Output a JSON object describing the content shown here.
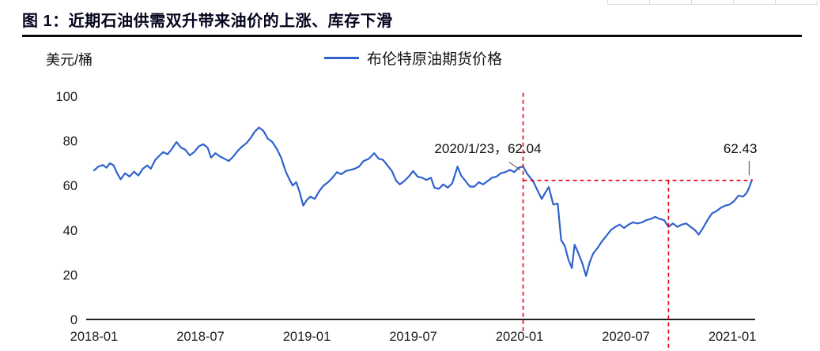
{
  "chart": {
    "colors": {
      "line": "#2f62cc",
      "dashed": "#e60012",
      "axis_text": "#1c1c1c",
      "title": "#04041e"
    }
  },
  "chart_data": {
    "type": "line",
    "title": "图 1：近期石油供需双升带来油价的上涨、库存下滑",
    "ylabel": "美元/桶",
    "xlabel": "",
    "ylim": [
      0,
      100
    ],
    "y_ticks": [
      0,
      20,
      40,
      60,
      80,
      100
    ],
    "x_ticks": [
      "2018-01",
      "2018-07",
      "2019-01",
      "2019-07",
      "2020-01",
      "2020-07",
      "2021-01"
    ],
    "x_tick_months": [
      0,
      6,
      12,
      18,
      24,
      30,
      36
    ],
    "x_unit": "months_since_2018_01",
    "grid": false,
    "legend_position": "top-center",
    "series": [
      {
        "name": "布伦特原油期货价格",
        "x": [
          0,
          0.25,
          0.5,
          0.7,
          0.9,
          1.1,
          1.3,
          1.5,
          1.75,
          2,
          2.25,
          2.5,
          2.75,
          3,
          3.2,
          3.45,
          3.7,
          3.9,
          4.15,
          4.4,
          4.65,
          4.9,
          5.15,
          5.4,
          5.65,
          5.9,
          6.15,
          6.4,
          6.6,
          6.85,
          7.1,
          7.35,
          7.6,
          7.85,
          8.1,
          8.35,
          8.6,
          8.85,
          9.05,
          9.3,
          9.55,
          9.8,
          10.05,
          10.3,
          10.55,
          10.8,
          11,
          11.2,
          11.4,
          11.6,
          11.8,
          12,
          12.2,
          12.45,
          12.7,
          12.95,
          13.2,
          13.45,
          13.7,
          13.95,
          14.2,
          14.45,
          14.7,
          14.95,
          15.2,
          15.5,
          15.8,
          16.05,
          16.3,
          16.55,
          16.8,
          17.05,
          17.25,
          17.5,
          17.75,
          18,
          18.25,
          18.5,
          18.75,
          19,
          19.2,
          19.45,
          19.7,
          19.95,
          20.2,
          20.5,
          20.7,
          20.95,
          21.2,
          21.45,
          21.7,
          21.95,
          22.2,
          22.45,
          22.7,
          22.95,
          23.2,
          23.45,
          23.7,
          23.95,
          24.2,
          24.45,
          24.75,
          25,
          25.25,
          25.5,
          25.65,
          25.9,
          26.15,
          26.35,
          26.55,
          26.75,
          26.95,
          27.1,
          27.3,
          27.55,
          27.75,
          27.95,
          28.15,
          28.4,
          28.65,
          28.9,
          29.15,
          29.4,
          29.65,
          29.9,
          30.15,
          30.4,
          30.65,
          30.9,
          31.15,
          31.4,
          31.65,
          31.9,
          32.15,
          32.4,
          32.65,
          32.9,
          33.15,
          33.4,
          33.65,
          33.9,
          34.1,
          34.35,
          34.6,
          34.85,
          35.1,
          35.35,
          35.6,
          35.85,
          36.1,
          36.35,
          36.6,
          36.8,
          36.95,
          37.1
        ],
        "y": [
          66.8,
          68.5,
          69.2,
          68,
          70,
          69,
          65.5,
          62.8,
          65.5,
          64,
          66.2,
          64.5,
          67.5,
          69,
          67.5,
          71.5,
          73.5,
          75,
          74,
          76.5,
          79.5,
          77,
          76,
          73.5,
          75,
          77.5,
          78.5,
          77,
          72.5,
          74.5,
          73,
          72,
          71,
          73,
          75.5,
          77.5,
          79,
          81.5,
          84,
          86,
          84.5,
          81,
          79.5,
          76.5,
          72.5,
          66.5,
          63,
          60,
          61.5,
          57,
          51,
          53.5,
          55,
          54,
          57.5,
          60,
          61.5,
          63.5,
          66,
          65,
          66.5,
          67,
          67.5,
          68.5,
          71,
          72,
          74.5,
          72,
          71.5,
          69,
          66.5,
          62,
          60.5,
          62,
          64,
          66.5,
          64,
          63.5,
          62.5,
          63.5,
          59,
          58.5,
          60.5,
          59,
          61,
          68.5,
          64.5,
          62,
          59.5,
          59.5,
          61.5,
          60.5,
          62,
          63.5,
          64,
          65.5,
          66,
          67,
          66,
          68,
          68.5,
          65,
          62.04,
          58,
          54,
          57.5,
          59.3,
          51.5,
          51.9,
          35.5,
          33,
          27,
          23,
          33.5,
          30,
          25,
          19.5,
          25.5,
          29.5,
          32,
          35,
          37.5,
          40,
          41.5,
          42.5,
          41,
          42.5,
          43.5,
          43,
          43.5,
          44.5,
          45,
          46,
          45,
          44.5,
          41.5,
          43,
          41.5,
          42.5,
          43,
          41.5,
          40,
          38,
          41,
          44.5,
          47.5,
          48.5,
          50,
          51,
          51.5,
          53,
          55.5,
          55,
          56.5,
          59,
          62.43
        ]
      }
    ],
    "annotations": [
      {
        "text": "2020/1/23，62.04",
        "x_month": 19.2,
        "y_value": 74.5,
        "anchor": "start",
        "leader": {
          "x1_month": 23.4,
          "y1_value": 70.5,
          "x2_month": 24.05,
          "y2_value": 67
        }
      },
      {
        "text": "62.43",
        "x_month": 36.45,
        "y_value": 74.5,
        "anchor": "middle",
        "leader": {
          "x1_month": 36.95,
          "y1_value": 71,
          "x2_month": 36.95,
          "y2_value": 64.5
        }
      }
    ],
    "reference_lines": {
      "vertical": [
        {
          "x_month": 24.2,
          "y_from": 101.5,
          "y_to": -6
        },
        {
          "x_month": 32.4,
          "y_from": 62.3,
          "y_to": -14.2
        }
      ],
      "horizontal": [
        {
          "y_value": 62.3,
          "x_from_month": 24.2,
          "x_to_month": 37.15
        }
      ]
    }
  }
}
